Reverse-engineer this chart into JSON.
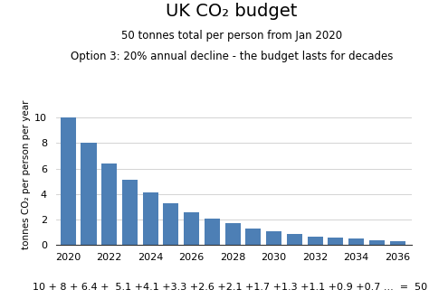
{
  "title": "UK CO₂ budget",
  "subtitle1": "50 tonnes total per person from Jan 2020",
  "subtitle2": "Option 3: 20% annual decline - the budget lasts for decades",
  "footer": "10 + 8 + 6.4 +  5.1 +4.1 +3.3 +2.6 +2.1 +1.7 +1.3 +1.1 +0.9 +0.7 ...  =  50",
  "years": [
    2020,
    2021,
    2022,
    2023,
    2024,
    2025,
    2026,
    2027,
    2028,
    2029,
    2030,
    2031,
    2032,
    2033,
    2034,
    2035,
    2036
  ],
  "values": [
    10.0,
    8.0,
    6.4,
    5.1,
    4.1,
    3.3,
    2.6,
    2.1,
    1.7,
    1.3,
    1.1,
    0.9,
    0.7,
    0.6,
    0.5,
    0.4,
    0.3
  ],
  "bar_color": "#4d7fb5",
  "ylabel": "tonnes CO₂ per person per year",
  "ylim": [
    0,
    11
  ],
  "yticks": [
    0,
    2,
    4,
    6,
    8,
    10
  ],
  "xtick_years": [
    2020,
    2022,
    2024,
    2026,
    2028,
    2030,
    2032,
    2034,
    2036
  ],
  "background_color": "#ffffff",
  "title_fontsize": 14,
  "subtitle_fontsize": 8.5,
  "footer_fontsize": 8,
  "ylabel_fontsize": 7.5,
  "tick_fontsize": 8,
  "bar_width": 0.75
}
